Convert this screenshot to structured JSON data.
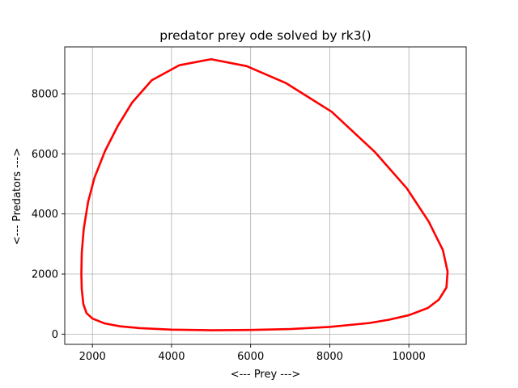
{
  "chart_data": {
    "type": "line",
    "title": "predator prey ode solved by rk3()",
    "xlabel": "<--- Prey --->",
    "ylabel": "<--- Predators --->",
    "xlim": [
      1300,
      11450
    ],
    "ylim": [
      -340,
      9560
    ],
    "x_ticks": [
      2000,
      4000,
      6000,
      8000,
      10000
    ],
    "y_ticks": [
      0,
      2000,
      4000,
      6000,
      8000
    ],
    "x_tick_labels": [
      "2000",
      "4000",
      "6000",
      "8000",
      "10000"
    ],
    "y_tick_labels": [
      "0",
      "2000",
      "4000",
      "6000",
      "8000"
    ],
    "grid": true,
    "series": [
      {
        "color": "#ff0000",
        "x": [
          5000,
          5900,
          6900,
          8050,
          9150,
          9950,
          10500,
          10860,
          10980,
          10950,
          10760,
          10480,
          10000,
          9500,
          9000,
          8000,
          7000,
          6000,
          5000,
          4000,
          3200,
          2700,
          2300,
          2000,
          1850,
          1770,
          1730,
          1720,
          1730,
          1780,
          1890,
          2050,
          2320,
          2650,
          3000,
          3500,
          4200,
          5000
        ],
        "y": [
          9150,
          8920,
          8350,
          7400,
          6050,
          4850,
          3750,
          2800,
          2080,
          1550,
          1150,
          870,
          630,
          480,
          370,
          240,
          170,
          140,
          130,
          150,
          200,
          260,
          360,
          520,
          700,
          1000,
          1500,
          2000,
          2700,
          3500,
          4400,
          5200,
          6100,
          6950,
          7700,
          8450,
          8950,
          9150
        ]
      }
    ]
  }
}
